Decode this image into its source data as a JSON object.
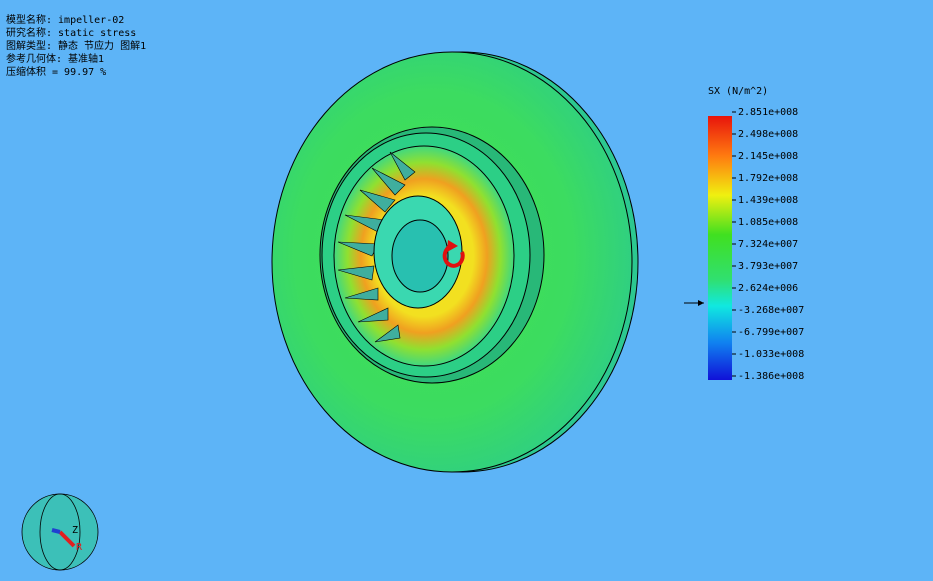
{
  "info": {
    "lines": [
      "模型名称: impeller-02",
      "研究名称: static stress",
      "图解类型: 静态 节应力 图解1",
      "参考几何体: 基准轴1",
      "压缩体积 = 99.97 %"
    ]
  },
  "legend": {
    "title": "SX (N/m^2)",
    "labels": [
      "2.851e+008",
      "2.498e+008",
      "2.145e+008",
      "1.792e+008",
      "1.439e+008",
      "1.085e+008",
      "7.324e+007",
      "3.793e+007",
      "2.624e+006",
      "-3.268e+007",
      "-6.799e+007",
      "-1.033e+008",
      "-1.386e+008"
    ]
  },
  "triad": {
    "z": "Z",
    "r": "R"
  }
}
